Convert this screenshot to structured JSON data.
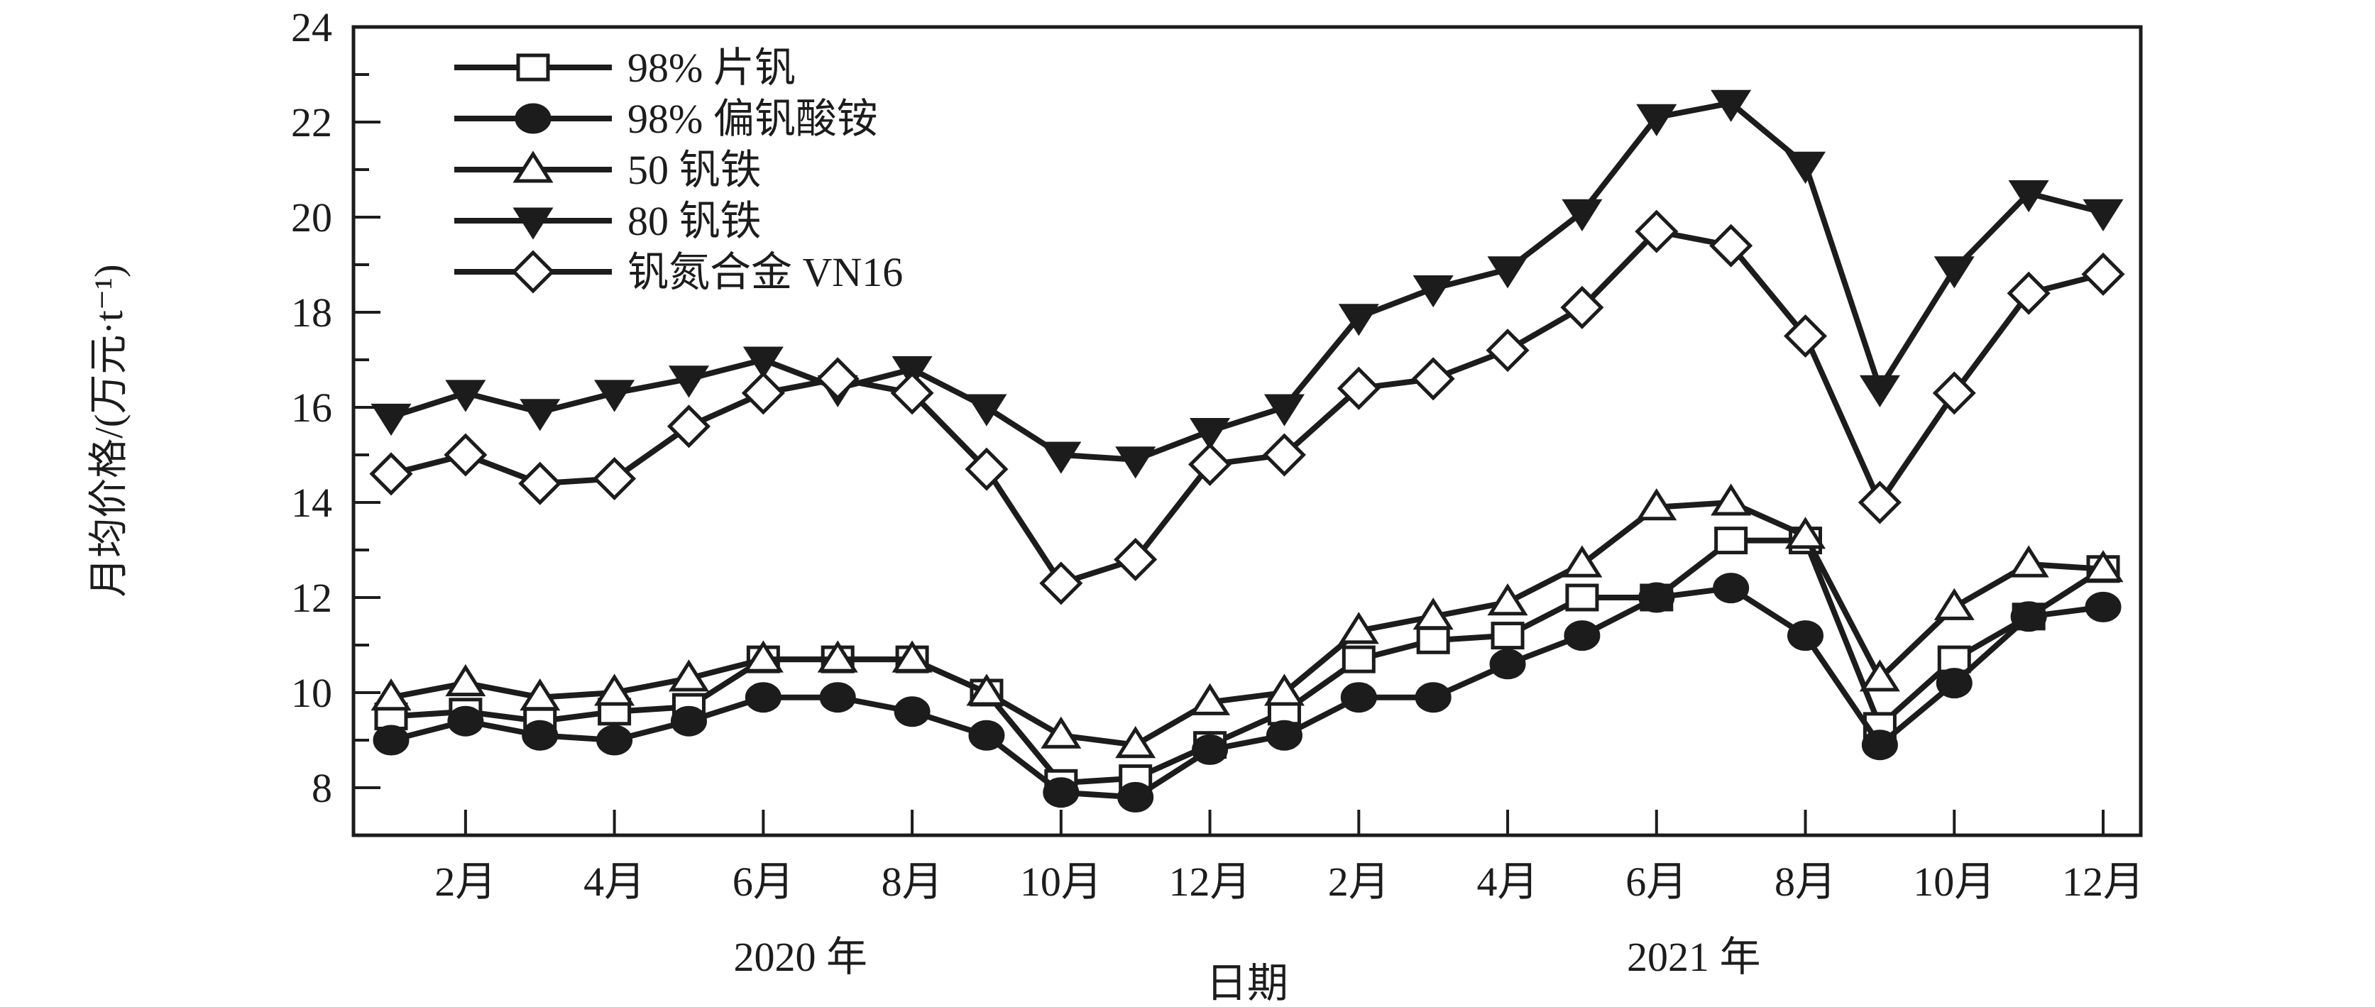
{
  "figure": {
    "background_color": "#ffffff",
    "ink_color": "#1c1c1c"
  },
  "chart_data": {
    "type": "line",
    "title": "",
    "xlabel": "日期",
    "ylabel": "月均价格/(万元·t⁻¹)",
    "ylim": [
      7,
      24
    ],
    "y_major_ticks": [
      8,
      10,
      12,
      14,
      16,
      18,
      20,
      22,
      24
    ],
    "y_minor_ticks": [
      9,
      11,
      13,
      15,
      17,
      19,
      21,
      23
    ],
    "grid": false,
    "legend_position": "upper-left",
    "x_months": [
      "2020-01",
      "2020-02",
      "2020-03",
      "2020-04",
      "2020-05",
      "2020-06",
      "2020-07",
      "2020-08",
      "2020-09",
      "2020-10",
      "2020-11",
      "2020-12",
      "2021-01",
      "2021-02",
      "2021-03",
      "2021-04",
      "2021-05",
      "2021-06",
      "2021-07",
      "2021-08",
      "2021-09",
      "2021-10",
      "2021-11",
      "2021-12"
    ],
    "x_tick_labels": [
      "2月",
      "4月",
      "6月",
      "8月",
      "10月",
      "12月",
      "2月",
      "4月",
      "6月",
      "8月",
      "10月",
      "12月"
    ],
    "year_labels": [
      {
        "label": "2020 年",
        "center_month": 6.5
      },
      {
        "label": "2021 年",
        "center_month": 18.5
      }
    ],
    "series": [
      {
        "id": "flake-vanadium-98",
        "name": "98% 片钒",
        "marker": "square",
        "fill": "open",
        "values": [
          9.5,
          9.6,
          9.4,
          9.6,
          9.7,
          10.7,
          10.7,
          10.7,
          10.0,
          8.1,
          8.2,
          8.9,
          9.6,
          10.7,
          11.1,
          11.2,
          12.0,
          12.0,
          13.2,
          13.2,
          9.3,
          10.7,
          11.6,
          12.6
        ]
      },
      {
        "id": "ammonium-metavanadate-98",
        "name": "98% 偏钒酸铵",
        "marker": "circle",
        "fill": "solid",
        "values": [
          9.0,
          9.4,
          9.1,
          9.0,
          9.4,
          9.9,
          9.9,
          9.6,
          9.1,
          7.9,
          7.8,
          8.8,
          9.1,
          9.9,
          9.9,
          10.6,
          11.2,
          12.0,
          12.2,
          11.2,
          8.9,
          10.2,
          11.6,
          11.8
        ]
      },
      {
        "id": "ferrovanadium-50",
        "name": "50 钒铁",
        "marker": "triangle-up",
        "fill": "open",
        "values": [
          9.9,
          10.2,
          9.9,
          10.0,
          10.3,
          10.7,
          10.7,
          10.7,
          10.0,
          9.1,
          8.9,
          9.8,
          10.0,
          11.3,
          11.6,
          11.9,
          12.7,
          13.9,
          14.0,
          13.3,
          10.3,
          11.8,
          12.7,
          12.6
        ]
      },
      {
        "id": "ferrovanadium-80",
        "name": "80 钒铁",
        "marker": "triangle-down",
        "fill": "solid",
        "values": [
          15.8,
          16.3,
          15.9,
          16.3,
          16.6,
          17.0,
          16.4,
          16.8,
          16.0,
          15.0,
          14.9,
          15.5,
          16.0,
          17.9,
          18.5,
          18.9,
          20.1,
          22.1,
          22.4,
          21.1,
          16.4,
          18.9,
          20.5,
          20.1
        ]
      },
      {
        "id": "vanadium-nitrogen-alloy-vn16",
        "name": "钒氮合金 VN16",
        "marker": "diamond",
        "fill": "open",
        "values": [
          14.6,
          15.0,
          14.4,
          14.5,
          15.6,
          16.3,
          16.6,
          16.3,
          14.7,
          12.3,
          12.8,
          14.8,
          15.0,
          16.4,
          16.6,
          17.2,
          18.1,
          19.7,
          19.4,
          17.5,
          14.0,
          16.3,
          18.4,
          18.8
        ]
      }
    ]
  }
}
